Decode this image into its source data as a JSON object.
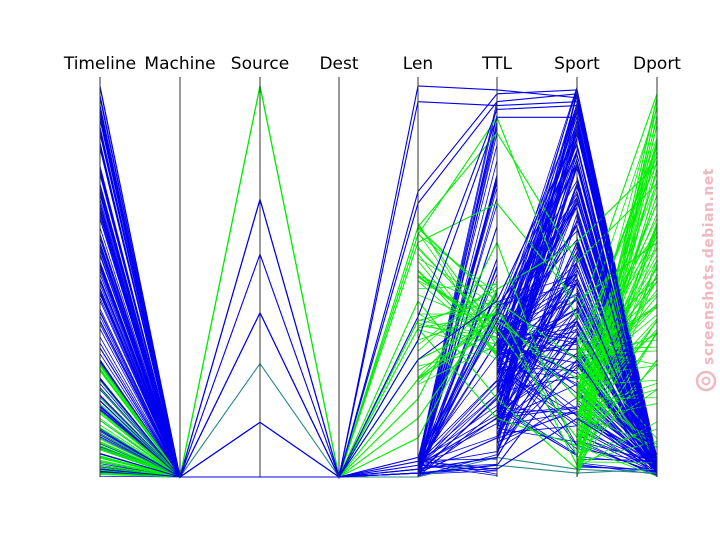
{
  "chart_data": {
    "type": "parallel-coordinates",
    "title": "",
    "axes": [
      "Timeline",
      "Machine",
      "Source",
      "Dest",
      "Len",
      "TTL",
      "Sport",
      "Dport"
    ],
    "ylim": [
      0,
      1
    ],
    "colors": {
      "blue": "#0000ee",
      "green": "#00ee00",
      "teal": "#2a8a8a",
      "axis": "#333333"
    },
    "series": [
      {
        "color": "green",
        "values": [
          0.02,
          0.0,
          1.0,
          0.0,
          0.62,
          0.92,
          0.4,
          0.98
        ]
      },
      {
        "color": "green",
        "values": [
          0.05,
          0.0,
          1.0,
          0.0,
          0.64,
          0.88,
          0.55,
          0.75
        ]
      },
      {
        "color": "green",
        "values": [
          0.08,
          0.0,
          1.0,
          0.0,
          0.6,
          0.7,
          0.45,
          0.6
        ]
      },
      {
        "color": "green",
        "values": [
          0.03,
          0.0,
          0.0,
          0.0,
          0.4,
          0.45,
          0.3,
          0.85
        ]
      },
      {
        "color": "green",
        "values": [
          0.06,
          0.0,
          0.0,
          0.0,
          0.35,
          0.42,
          0.2,
          0.7
        ]
      },
      {
        "color": "green",
        "values": [
          0.04,
          0.0,
          0.0,
          0.0,
          0.3,
          0.4,
          0.25,
          0.5
        ]
      },
      {
        "color": "green",
        "values": [
          0.07,
          0.0,
          0.0,
          0.0,
          0.25,
          0.38,
          0.1,
          0.4
        ]
      },
      {
        "color": "green",
        "values": [
          0.02,
          0.0,
          0.0,
          0.0,
          0.2,
          0.6,
          0.05,
          0.9
        ]
      },
      {
        "color": "green",
        "values": [
          0.05,
          0.0,
          0.0,
          0.0,
          0.15,
          0.44,
          0.03,
          0.3
        ]
      },
      {
        "color": "green",
        "values": [
          0.09,
          0.0,
          0.0,
          0.0,
          0.1,
          0.48,
          0.6,
          0.8
        ]
      },
      {
        "color": "green",
        "values": [
          0.01,
          0.0,
          0.0,
          0.0,
          0.45,
          0.2,
          0.02,
          0.95
        ]
      },
      {
        "color": "green",
        "values": [
          0.03,
          0.0,
          0.0,
          0.0,
          0.38,
          0.15,
          0.08,
          0.65
        ]
      },
      {
        "color": "teal",
        "values": [
          0.1,
          0.0,
          0.29,
          0.0,
          0.0,
          0.05,
          0.02,
          0.01
        ]
      },
      {
        "color": "teal",
        "values": [
          0.12,
          0.0,
          0.0,
          0.0,
          0.01,
          0.03,
          0.01,
          0.02
        ]
      },
      {
        "color": "blue",
        "values": [
          1.0,
          0.0,
          0.71,
          0.0,
          0.73,
          0.98,
          0.99,
          0.01
        ]
      },
      {
        "color": "blue",
        "values": [
          0.92,
          0.0,
          0.71,
          0.0,
          0.7,
          0.96,
          0.98,
          0.02
        ]
      },
      {
        "color": "blue",
        "values": [
          0.85,
          0.0,
          0.57,
          0.0,
          1.0,
          0.99,
          0.97,
          0.03
        ]
      },
      {
        "color": "blue",
        "values": [
          0.78,
          0.0,
          0.42,
          0.0,
          0.96,
          0.95,
          0.96,
          0.01
        ]
      },
      {
        "color": "blue",
        "values": [
          0.7,
          0.0,
          0.42,
          0.0,
          0.41,
          0.94,
          0.95,
          0.02
        ]
      },
      {
        "color": "blue",
        "values": [
          0.62,
          0.0,
          0.14,
          0.0,
          0.35,
          0.92,
          0.92,
          0.01
        ]
      },
      {
        "color": "blue",
        "values": [
          0.55,
          0.0,
          0.14,
          0.0,
          0.3,
          0.45,
          0.88,
          0.04
        ]
      },
      {
        "color": "blue",
        "values": [
          0.48,
          0.0,
          0.0,
          0.0,
          0.05,
          0.42,
          0.85,
          0.02
        ]
      },
      {
        "color": "blue",
        "values": [
          0.4,
          0.0,
          0.0,
          0.0,
          0.02,
          0.4,
          0.8,
          0.03
        ]
      },
      {
        "color": "blue",
        "values": [
          0.33,
          0.0,
          0.0,
          0.0,
          0.01,
          0.2,
          0.75,
          0.01
        ]
      },
      {
        "color": "blue",
        "values": [
          0.25,
          0.0,
          0.0,
          0.0,
          0.03,
          0.15,
          0.6,
          0.02
        ]
      },
      {
        "color": "blue",
        "values": [
          0.18,
          0.0,
          0.0,
          0.0,
          0.01,
          0.1,
          0.5,
          0.01
        ]
      },
      {
        "color": "blue",
        "values": [
          0.12,
          0.0,
          0.0,
          0.0,
          0.02,
          0.05,
          0.4,
          0.02
        ]
      },
      {
        "color": "blue",
        "values": [
          0.06,
          0.0,
          0.0,
          0.0,
          0.01,
          0.03,
          0.3,
          0.01
        ]
      },
      {
        "color": "blue",
        "values": [
          0.02,
          0.0,
          0.0,
          0.0,
          0.04,
          0.02,
          0.15,
          0.02
        ]
      }
    ],
    "dense_bands": [
      {
        "color": "blue",
        "from_axis": 5,
        "to_axis": 6,
        "from_range": [
          0.05,
          0.45
        ],
        "to_range": [
          0.05,
          1.0
        ],
        "count": 160
      },
      {
        "color": "blue",
        "from_axis": 6,
        "to_axis": 7,
        "from_range": [
          0.02,
          1.0
        ],
        "to_range": [
          0.0,
          0.05
        ],
        "count": 160
      },
      {
        "color": "blue",
        "from_axis": 0,
        "to_axis": 1,
        "from_range": [
          0.0,
          1.0
        ],
        "to_range": [
          0.0,
          0.0
        ],
        "count": 140
      },
      {
        "color": "green",
        "from_axis": 6,
        "to_axis": 7,
        "from_range": [
          0.0,
          0.35
        ],
        "to_range": [
          0.0,
          1.0
        ],
        "count": 90
      },
      {
        "color": "green",
        "from_axis": 0,
        "to_axis": 1,
        "from_range": [
          0.0,
          0.3
        ],
        "to_range": [
          0.0,
          0.0
        ],
        "count": 40
      },
      {
        "color": "blue",
        "from_axis": 4,
        "to_axis": 5,
        "from_range": [
          0.0,
          0.05
        ],
        "to_range": [
          0.0,
          0.98
        ],
        "count": 60
      },
      {
        "color": "green",
        "from_axis": 4,
        "to_axis": 5,
        "from_range": [
          0.2,
          0.65
        ],
        "to_range": [
          0.3,
          0.5
        ],
        "count": 40
      }
    ]
  },
  "watermark": {
    "text": "screenshots.debian.net"
  }
}
